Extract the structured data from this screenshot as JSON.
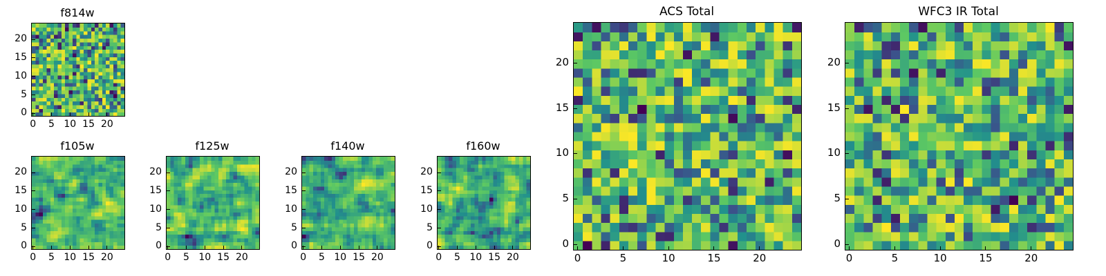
{
  "colormap": {
    "name": "viridis",
    "stops": [
      "#440154",
      "#3b528b",
      "#21918c",
      "#5ec962",
      "#fde725"
    ]
  },
  "chart_data": [
    {
      "type": "heatmap",
      "title": "f814w",
      "grid": [
        25,
        25
      ],
      "xlim": [
        0,
        24
      ],
      "ylim": [
        0,
        24
      ],
      "xticks": [
        0,
        5,
        10,
        15,
        20
      ],
      "yticks": [
        0,
        5,
        10,
        15,
        20
      ],
      "seed": 814,
      "smooth": 0
    },
    {
      "type": "heatmap",
      "title": "f105w",
      "grid": [
        25,
        25
      ],
      "xlim": [
        0,
        24
      ],
      "ylim": [
        0,
        24
      ],
      "xticks": [
        0,
        5,
        10,
        15,
        20
      ],
      "yticks": [
        0,
        5,
        10,
        15,
        20
      ],
      "seed": 105,
      "smooth": 1
    },
    {
      "type": "heatmap",
      "title": "f125w",
      "grid": [
        25,
        25
      ],
      "xlim": [
        0,
        24
      ],
      "ylim": [
        0,
        24
      ],
      "xticks": [
        0,
        5,
        10,
        15,
        20
      ],
      "yticks": [
        0,
        5,
        10,
        15,
        20
      ],
      "seed": 125,
      "smooth": 1
    },
    {
      "type": "heatmap",
      "title": "f140w",
      "grid": [
        25,
        25
      ],
      "xlim": [
        0,
        24
      ],
      "ylim": [
        0,
        24
      ],
      "xticks": [
        0,
        5,
        10,
        15,
        20
      ],
      "yticks": [
        0,
        5,
        10,
        15,
        20
      ],
      "seed": 140,
      "smooth": 1
    },
    {
      "type": "heatmap",
      "title": "f160w",
      "grid": [
        25,
        25
      ],
      "xlim": [
        0,
        24
      ],
      "ylim": [
        0,
        24
      ],
      "xticks": [
        0,
        5,
        10,
        15,
        20
      ],
      "yticks": [
        0,
        5,
        10,
        15,
        20
      ],
      "seed": 160,
      "smooth": 1
    },
    {
      "type": "heatmap",
      "title": "ACS Total",
      "grid": [
        25,
        25
      ],
      "xlim": [
        0,
        24
      ],
      "ylim": [
        0,
        24
      ],
      "xticks": [
        0,
        5,
        10,
        15,
        20
      ],
      "yticks": [
        0,
        5,
        10,
        15,
        20
      ],
      "seed": 901,
      "smooth": 0
    },
    {
      "type": "heatmap",
      "title": "WFC3 IR Total",
      "grid": [
        25,
        25
      ],
      "xlim": [
        0,
        24
      ],
      "ylim": [
        0,
        24
      ],
      "xticks": [
        0,
        5,
        10,
        15,
        20
      ],
      "yticks": [
        0,
        5,
        10,
        15,
        20
      ],
      "seed": 777,
      "smooth": 0
    }
  ]
}
